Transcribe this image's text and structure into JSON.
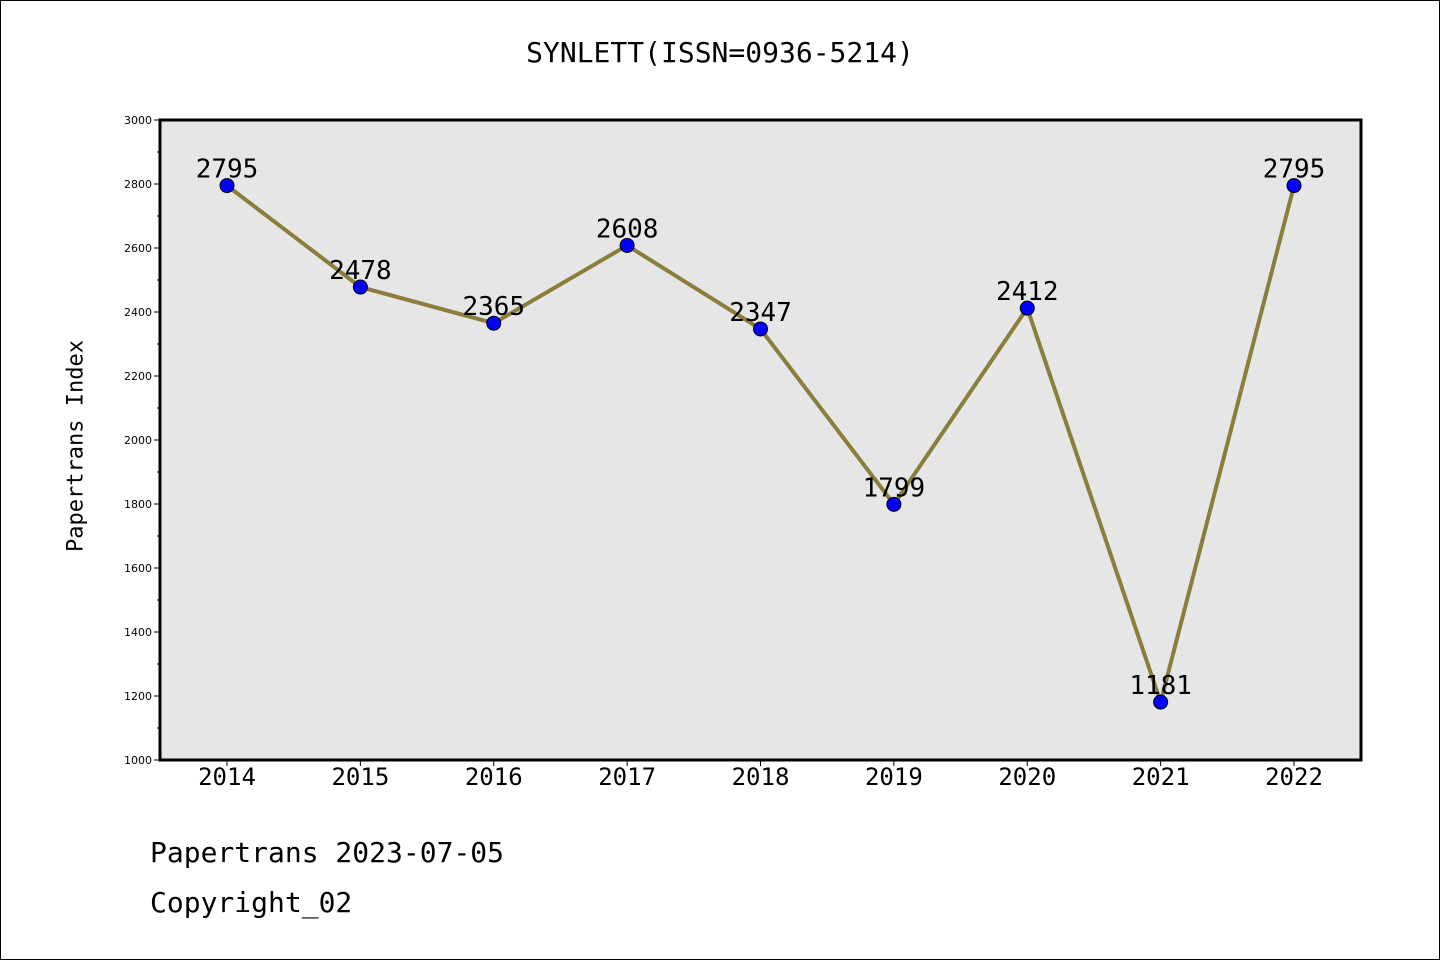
{
  "chart_data": {
    "type": "line",
    "title": "SYNLETT(ISSN=0936-5214)",
    "xlabel": "",
    "ylabel": "Papertrans Index",
    "categories": [
      "2014",
      "2015",
      "2016",
      "2017",
      "2018",
      "2019",
      "2020",
      "2021",
      "2022"
    ],
    "series": [
      {
        "values": [
          2795,
          2478,
          2365,
          2608,
          2347,
          1799,
          2412,
          1181,
          2795
        ]
      }
    ],
    "data_labels": [
      "2795",
      "2478",
      "2365",
      "2608",
      "2347",
      "1799",
      "2412",
      "1181",
      "2795"
    ],
    "ylim": [
      1000,
      3000
    ],
    "y_ticks": [
      1000,
      1200,
      1400,
      1600,
      1800,
      2000,
      2200,
      2400,
      2600,
      2800,
      3000
    ],
    "y_minor_step": 100,
    "grid": false,
    "line_color": "#8b7d3a",
    "marker_color": "#0000ff",
    "plot_background": "#e6e6e6"
  },
  "footer": {
    "date_text": "Papertrans 2023-07-05",
    "copyright_text": "Copyright_02"
  }
}
